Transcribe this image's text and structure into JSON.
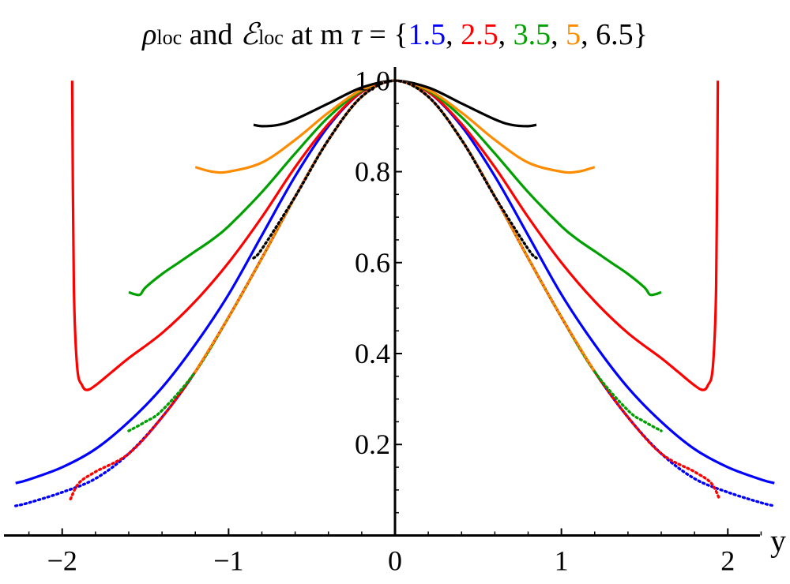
{
  "chart_data": {
    "type": "line",
    "title": {
      "parts": [
        {
          "text": "ρ",
          "color": "#000000",
          "style": "italic"
        },
        {
          "text": "loc",
          "color": "#000000",
          "style": "sub"
        },
        {
          "text": " and ",
          "color": "#000000",
          "style": "normal"
        },
        {
          "text": "ℰ",
          "color": "#000000",
          "style": "italic"
        },
        {
          "text": "loc",
          "color": "#000000",
          "style": "sub"
        },
        {
          "text": " at m ",
          "color": "#000000",
          "style": "normal"
        },
        {
          "text": "τ",
          "color": "#000000",
          "style": "italic"
        },
        {
          "text": " = {",
          "color": "#000000",
          "style": "normal"
        },
        {
          "text": "1.5",
          "color": "#0000ff",
          "style": "normal"
        },
        {
          "text": ", ",
          "color": "#000000",
          "style": "normal"
        },
        {
          "text": "2.5",
          "color": "#ff0000",
          "style": "normal"
        },
        {
          "text": ", ",
          "color": "#000000",
          "style": "normal"
        },
        {
          "text": "3.5",
          "color": "#00a000",
          "style": "normal"
        },
        {
          "text": ", ",
          "color": "#000000",
          "style": "normal"
        },
        {
          "text": "5",
          "color": "#ff8c00",
          "style": "normal"
        },
        {
          "text": ", ",
          "color": "#000000",
          "style": "normal"
        },
        {
          "text": "6.5",
          "color": "#000000",
          "style": "normal"
        },
        {
          "text": "}",
          "color": "#000000",
          "style": "normal"
        }
      ]
    },
    "xlabel": "y",
    "ylabel": "",
    "xlim": [
      -2.35,
      2.35
    ],
    "ylim": [
      -0.02,
      1.03
    ],
    "x_ticks": [
      {
        "value": -2,
        "label": "−2"
      },
      {
        "value": -1,
        "label": "−1"
      },
      {
        "value": 0,
        "label": "0"
      },
      {
        "value": 1,
        "label": "1"
      },
      {
        "value": 2,
        "label": "2"
      }
    ],
    "y_ticks": [
      {
        "value": 0.2,
        "label": "0.2"
      },
      {
        "value": 0.4,
        "label": "0.4"
      },
      {
        "value": 0.6,
        "label": "0.6"
      },
      {
        "value": 0.8,
        "label": "0.8"
      },
      {
        "value": 1.0,
        "label": "1.0"
      }
    ],
    "series": [
      {
        "name": "ε_loc mτ=1.5",
        "color": "#0000ff",
        "dash": "solid",
        "x": [
          0,
          0.2,
          0.4,
          0.6,
          0.8,
          1.0,
          1.2,
          1.4,
          1.6,
          1.8,
          2.0,
          2.2,
          2.28
        ],
        "y": [
          1.0,
          0.975,
          0.9,
          0.79,
          0.66,
          0.53,
          0.42,
          0.325,
          0.25,
          0.19,
          0.15,
          0.123,
          0.115
        ]
      },
      {
        "name": "ε_loc mτ=2.5",
        "color": "#ff0000",
        "dash": "solid",
        "x": [
          0,
          0.2,
          0.4,
          0.6,
          0.8,
          1.0,
          1.2,
          1.4,
          1.6,
          1.7,
          1.8,
          1.85,
          1.88,
          1.91,
          1.93,
          1.94
        ],
        "y": [
          1.0,
          0.975,
          0.905,
          0.81,
          0.7,
          0.6,
          0.515,
          0.445,
          0.39,
          0.36,
          0.33,
          0.32,
          0.33,
          0.37,
          0.55,
          1.0
        ]
      },
      {
        "name": "ε_loc mτ=3.5",
        "color": "#00a000",
        "dash": "solid",
        "x": [
          0,
          0.2,
          0.4,
          0.6,
          0.8,
          1.0,
          1.1,
          1.2,
          1.3,
          1.4,
          1.5,
          1.53,
          1.56,
          1.6
        ],
        "y": [
          1.0,
          0.978,
          0.92,
          0.84,
          0.755,
          0.68,
          0.65,
          0.625,
          0.6,
          0.575,
          0.545,
          0.53,
          0.53,
          0.535
        ]
      },
      {
        "name": "ε_loc mτ=5",
        "color": "#ff8c00",
        "dash": "solid",
        "x": [
          0,
          0.2,
          0.4,
          0.6,
          0.8,
          1.0,
          1.1,
          1.2
        ],
        "y": [
          1.0,
          0.98,
          0.93,
          0.87,
          0.82,
          0.8,
          0.8,
          0.81
        ]
      },
      {
        "name": "ε_loc mτ=6.5",
        "color": "#000000",
        "dash": "solid",
        "x": [
          0,
          0.2,
          0.4,
          0.6,
          0.7,
          0.8,
          0.85
        ],
        "y": [
          1.0,
          0.985,
          0.95,
          0.915,
          0.903,
          0.9,
          0.903
        ]
      },
      {
        "name": "ρ_loc mτ=1.5",
        "color": "#0000ff",
        "dash": "dotted",
        "x": [
          0,
          0.2,
          0.4,
          0.6,
          0.8,
          1.0,
          1.2,
          1.4,
          1.6,
          1.8,
          2.0,
          2.2,
          2.28
        ],
        "y": [
          1.0,
          0.965,
          0.87,
          0.745,
          0.61,
          0.48,
          0.36,
          0.26,
          0.18,
          0.125,
          0.095,
          0.072,
          0.065
        ]
      },
      {
        "name": "ρ_loc mτ=2.5",
        "color": "#ff0000",
        "dash": "dotted",
        "x": [
          0,
          0.2,
          0.4,
          0.6,
          0.8,
          1.0,
          1.2,
          1.4,
          1.6,
          1.8,
          1.9,
          1.95
        ],
        "y": [
          1.0,
          0.965,
          0.87,
          0.745,
          0.61,
          0.48,
          0.36,
          0.26,
          0.18,
          0.14,
          0.115,
          0.08
        ]
      },
      {
        "name": "ρ_loc mτ=3.5",
        "color": "#00a000",
        "dash": "dotted",
        "x": [
          0,
          0.2,
          0.4,
          0.6,
          0.8,
          1.0,
          1.2,
          1.4,
          1.5,
          1.6
        ],
        "y": [
          1.0,
          0.965,
          0.87,
          0.745,
          0.61,
          0.48,
          0.36,
          0.275,
          0.25,
          0.23
        ]
      },
      {
        "name": "ρ_loc mτ=5",
        "color": "#ff8c00",
        "dash": "dotted",
        "x": [
          0,
          0.2,
          0.4,
          0.6,
          0.8,
          1.0,
          1.2
        ],
        "y": [
          1.0,
          0.965,
          0.87,
          0.745,
          0.61,
          0.48,
          0.36
        ]
      },
      {
        "name": "ρ_loc mτ=6.5",
        "color": "#000000",
        "dash": "dotted",
        "x": [
          0,
          0.2,
          0.4,
          0.6,
          0.8,
          0.85
        ],
        "y": [
          1.0,
          0.965,
          0.87,
          0.745,
          0.63,
          0.61
        ]
      }
    ]
  }
}
